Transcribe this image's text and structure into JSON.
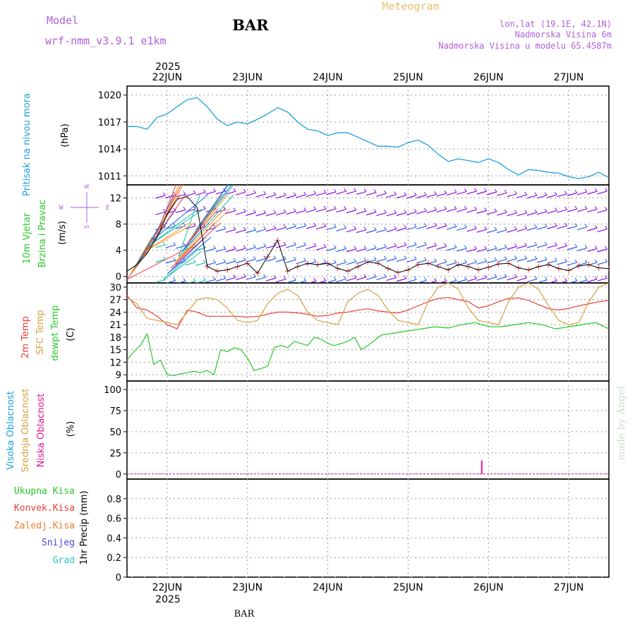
{
  "header": {
    "model_label": "Model",
    "model_name": "wrf-nmm_v3.9.1  e1km",
    "station": "BAR",
    "title": "Meteogram",
    "lonlat": "lon,lat (19.1E, 42.1N)",
    "elevation": "Nadmorska Visina 6m",
    "model_elevation": "Nadmorska Visina u modelu 65.4587m",
    "footer_station": "BAR",
    "watermark": "made by Angel"
  },
  "colors": {
    "pressure": "#1ca0e0",
    "temp2m": "#e8403a",
    "sfc_temp": "#d8a040",
    "dewpoint": "#28c828",
    "model_label": "#b060d8",
    "low_cloud": "#e01890",
    "precip_green": "#28c828",
    "precip_red": "#e8403a",
    "precip_orange": "#e88028",
    "precip_blue": "#4848e0",
    "precip_cyan": "#30c8c0",
    "wind_purple": "#8a10e0",
    "wind_blue": "#2860e8",
    "wind_teal": "#18c0a8",
    "wind_orange": "#f09020",
    "wind_red": "#f04040"
  },
  "chart_data": [
    {
      "type": "line",
      "id": "pressure",
      "ylabel_name": "Pritisak na nivou mora",
      "ylabel_unit": "(hPa)",
      "x_ticks": [
        "22JUN",
        "23JUN",
        "24JUN",
        "25JUN",
        "26JUN",
        "27JUN"
      ],
      "year": "2025",
      "ylim": [
        1010,
        1021
      ],
      "yticks": [
        "1011",
        "1014",
        "1017",
        "1020"
      ],
      "grid": true,
      "series": [
        {
          "x": [
            0,
            3,
            6,
            9,
            12,
            15,
            18,
            21,
            24,
            27,
            30,
            33,
            36,
            39,
            42,
            45,
            48,
            51,
            54,
            57,
            60,
            63,
            66,
            69,
            72,
            75,
            78,
            81,
            84,
            87,
            90,
            93,
            96,
            99,
            102,
            105,
            108,
            111,
            114,
            117,
            120,
            123,
            126,
            129,
            132,
            135,
            138,
            141,
            144
          ],
          "values": [
            1016.5,
            1016.5,
            1016.2,
            1017.5,
            1017.9,
            1018.7,
            1019.5,
            1019.7,
            1018.7,
            1017.3,
            1016.6,
            1017.0,
            1016.8,
            1017.3,
            1017.9,
            1018.6,
            1018.1,
            1017.0,
            1016.2,
            1016.0,
            1015.5,
            1015.8,
            1015.8,
            1015.3,
            1014.8,
            1014.3,
            1014.3,
            1014.2,
            1014.7,
            1015.0,
            1014.4,
            1013.4,
            1012.6,
            1012.9,
            1012.7,
            1012.5,
            1012.9,
            1012.5,
            1011.7,
            1011.1,
            1011.7,
            1011.6,
            1011.4,
            1011.3,
            1010.9,
            1010.7,
            1010.9,
            1011.4,
            1010.8
          ]
        }
      ]
    },
    {
      "type": "line",
      "id": "wind",
      "ylabel_name": "10m Vjetar",
      "ylabel_name2": "Brzina i Pravac",
      "ylabel_unit": "(m/s)",
      "compass_n": "N",
      "compass_e": "E",
      "compass_w": "W",
      "compass_s": "S",
      "ylim": [
        -1,
        14
      ],
      "yticks": [
        "0",
        "4",
        "8",
        "12"
      ],
      "grid": true,
      "series": [
        {
          "x": [
            0,
            3,
            6,
            9,
            12,
            15,
            18,
            21,
            24,
            27,
            30,
            33,
            36,
            39,
            42,
            45,
            48,
            51,
            54,
            57,
            60,
            63,
            66,
            69,
            72,
            75,
            78,
            81,
            84,
            87,
            90,
            93,
            96,
            99,
            102,
            105,
            108,
            111,
            114,
            117,
            120,
            123,
            126,
            129,
            132,
            135,
            138,
            141,
            144
          ],
          "values": [
            0.8,
            1.8,
            3.5,
            6.0,
            9.5,
            11.8,
            12.2,
            10.5,
            1.5,
            0.8,
            1.0,
            1.5,
            2.0,
            0.5,
            3.0,
            5.5,
            0.8,
            1.5,
            2.0,
            1.8,
            2.0,
            1.2,
            0.8,
            1.5,
            2.2,
            2.0,
            1.2,
            0.6,
            1.0,
            1.8,
            2.0,
            1.5,
            1.0,
            1.8,
            1.5,
            1.0,
            1.4,
            1.9,
            2.0,
            1.3,
            1.0,
            1.5,
            1.8,
            1.2,
            0.9,
            1.6,
            1.8,
            1.3,
            1.2
          ]
        }
      ]
    },
    {
      "type": "line",
      "id": "temperature",
      "ylabel_names": [
        "2m Temp",
        "SFC Temp",
        "dewpt Temp"
      ],
      "ylabel_unit": "(C)",
      "ylim": [
        7.5,
        31
      ],
      "yticks": [
        "9",
        "12",
        "15",
        "18",
        "21",
        "24",
        "27",
        "30"
      ],
      "grid": true,
      "series": [
        {
          "name": "2m Temp",
          "x": [
            0,
            3,
            6,
            9,
            12,
            15,
            18,
            21,
            24,
            27,
            30,
            33,
            36,
            39,
            42,
            45,
            48,
            51,
            54,
            57,
            60,
            63,
            66,
            69,
            72,
            75,
            78,
            81,
            84,
            87,
            90,
            93,
            96,
            99,
            102,
            105,
            108,
            111,
            114,
            117,
            120,
            123,
            126,
            129,
            132,
            135,
            138,
            141,
            144
          ],
          "values": [
            28.0,
            25.0,
            24.5,
            23.0,
            21.0,
            20.0,
            24.5,
            24.0,
            23.0,
            23.0,
            23.0,
            23.0,
            22.8,
            23.0,
            23.5,
            24.0,
            24.0,
            23.8,
            23.5,
            23.0,
            23.2,
            23.8,
            24.0,
            24.5,
            24.8,
            24.3,
            24.0,
            23.8,
            24.5,
            25.5,
            26.5,
            27.3,
            27.5,
            27.0,
            26.5,
            25.0,
            25.5,
            26.5,
            27.3,
            27.4,
            26.8,
            25.8,
            24.8,
            24.5,
            24.9,
            25.5,
            26.0,
            26.5,
            26.8
          ]
        },
        {
          "name": "SFC Temp",
          "x": [
            0,
            3,
            6,
            9,
            12,
            15,
            18,
            21,
            24,
            27,
            30,
            33,
            36,
            39,
            42,
            45,
            48,
            51,
            54,
            57,
            60,
            63,
            66,
            69,
            72,
            75,
            78,
            81,
            84,
            87,
            90,
            93,
            96,
            99,
            102,
            105,
            108,
            111,
            114,
            117,
            120,
            123,
            126,
            129,
            132,
            135,
            138,
            141,
            144
          ],
          "values": [
            27.5,
            26.0,
            22.5,
            22.0,
            21.5,
            21.0,
            24.0,
            27.0,
            27.5,
            27.0,
            25.0,
            22.0,
            21.5,
            22.0,
            26.0,
            28.5,
            29.5,
            28.0,
            24.0,
            22.0,
            21.5,
            21.0,
            26.5,
            28.5,
            29.5,
            28.0,
            24.5,
            22.0,
            21.5,
            21.0,
            26.5,
            30.0,
            31.0,
            29.5,
            25.0,
            22.0,
            21.5,
            21.0,
            26.5,
            30.0,
            31.0,
            29.5,
            25.5,
            22.0,
            21.0,
            21.5,
            26.5,
            30.0,
            31.0
          ]
        },
        {
          "name": "dewpt Temp",
          "x": [
            0,
            2,
            4,
            6,
            8,
            10,
            12,
            14,
            16,
            18,
            20,
            22,
            24,
            26,
            28,
            30,
            32,
            34,
            36,
            38,
            40,
            42,
            44,
            46,
            48,
            50,
            52,
            54,
            56,
            58,
            60,
            62,
            64,
            66,
            68,
            70,
            72,
            76,
            80,
            84,
            88,
            92,
            96,
            100,
            104,
            108,
            112,
            116,
            120,
            124,
            128,
            132,
            136,
            140,
            144
          ],
          "values": [
            12.5,
            14.5,
            16.0,
            18.8,
            11.5,
            12.5,
            9.0,
            8.8,
            9.2,
            9.5,
            9.8,
            9.5,
            10.0,
            9.0,
            15.0,
            14.5,
            15.5,
            15.0,
            13.0,
            10.0,
            10.5,
            11.0,
            15.5,
            16.0,
            15.5,
            17.0,
            16.5,
            16.0,
            18.0,
            17.5,
            16.5,
            16.0,
            16.5,
            17.0,
            18.0,
            15.0,
            16.0,
            18.5,
            19.0,
            19.5,
            20.0,
            20.5,
            20.2,
            21.0,
            21.5,
            20.5,
            20.5,
            21.0,
            21.5,
            21.0,
            20.0,
            20.5,
            21.0,
            21.5,
            20.0
          ]
        }
      ]
    },
    {
      "type": "bar",
      "id": "cloud",
      "ylabel_names": [
        "Visoka Oblacnost",
        "Srednja Oblacnost",
        "Niska Oblacnost"
      ],
      "ylabel_unit": "(%)",
      "ylim": [
        -6,
        110
      ],
      "yticks": [
        "0",
        "25",
        "50",
        "75",
        "100"
      ],
      "grid": true,
      "series": [
        {
          "name": "Niska Oblacnost",
          "x": [
            106
          ],
          "values": [
            16
          ]
        }
      ]
    },
    {
      "type": "bar",
      "id": "precip",
      "legend": [
        "Ukupna Kisa",
        "Konvek.Kisa",
        "Zaledj.Kisa",
        "Snijeg",
        "Grad"
      ],
      "ylabel_unit": "1hr Precip (mm)",
      "ylim": [
        0,
        1.0
      ],
      "yticks": [
        "0",
        "0.2",
        "0.4",
        "0.6",
        "0.8"
      ],
      "grid": true,
      "series": []
    }
  ]
}
